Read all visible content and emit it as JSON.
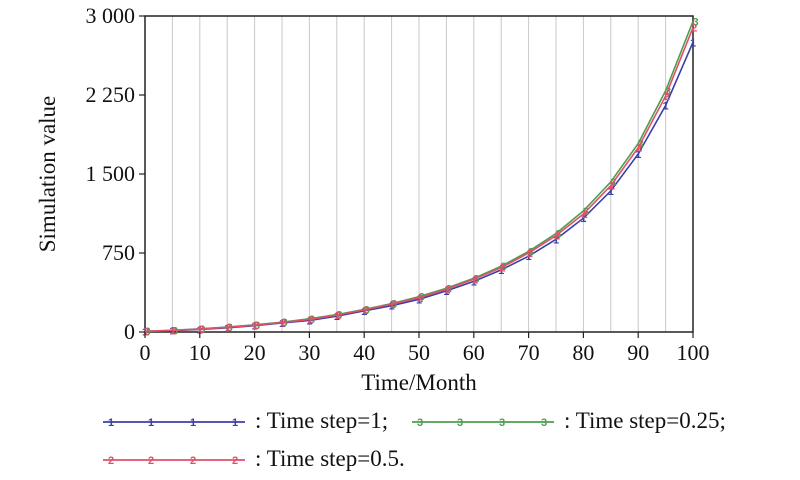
{
  "chart_data": {
    "type": "line",
    "xlabel": "Time/Month",
    "ylabel": "Simulation value",
    "xlim": [
      0,
      100
    ],
    "ylim": [
      0,
      3000
    ],
    "x_ticks": [
      "0",
      "10",
      "20",
      "30",
      "40",
      "50",
      "60",
      "70",
      "80",
      "90",
      "100"
    ],
    "y_ticks": [
      "0",
      "750",
      "1 500",
      "2 250",
      "3 000"
    ],
    "grid": "vertical",
    "legend_position": "bottom",
    "x": [
      0,
      5,
      10,
      15,
      20,
      25,
      30,
      35,
      40,
      45,
      50,
      55,
      60,
      65,
      70,
      75,
      80,
      85,
      90,
      95,
      100
    ],
    "series": [
      {
        "name": "Time step=1;",
        "marker": "1",
        "color": "#3b3fa8",
        "values": [
          5,
          12,
          25,
          40,
          60,
          85,
          110,
          150,
          200,
          250,
          310,
          390,
          480,
          590,
          720,
          880,
          1080,
          1340,
          1690,
          2150,
          2750
        ]
      },
      {
        "name": "Time step=0.25;",
        "marker": "3",
        "color": "#4f9d4f",
        "values": [
          8,
          16,
          30,
          47,
          68,
          93,
          125,
          165,
          215,
          270,
          335,
          415,
          510,
          625,
          765,
          935,
          1150,
          1425,
          1790,
          2290,
          2950
        ]
      },
      {
        "name": "Time step=0.5.",
        "marker": "2",
        "color": "#e0506a",
        "values": [
          7,
          15,
          28,
          45,
          65,
          90,
          120,
          160,
          210,
          265,
          325,
          405,
          500,
          610,
          750,
          915,
          1120,
          1390,
          1750,
          2240,
          2890
        ]
      }
    ]
  }
}
